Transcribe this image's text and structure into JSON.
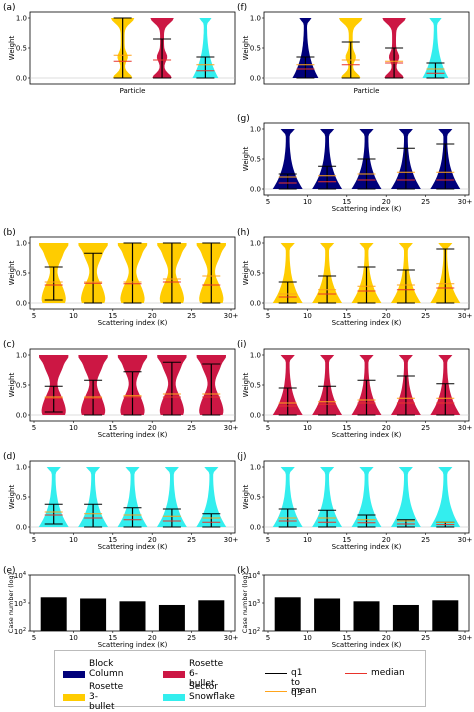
{
  "colors": {
    "block": "#00007a",
    "rosette6": "#cc1744",
    "rosette3": "#ffcc00",
    "sector": "#33eeee",
    "q1q3": "#000000",
    "mean": "#ffa41b",
    "median": "#e8332b"
  },
  "legend": {
    "items": [
      {
        "label": "Block\nColumn",
        "color": "#00007a",
        "kind": "swatch"
      },
      {
        "label": "Rosette\n6-bullet",
        "color": "#cc1744",
        "kind": "swatch"
      },
      {
        "label": "q1 to q3",
        "color": "#000000",
        "kind": "line"
      },
      {
        "label": "median",
        "color": "#e8332b",
        "kind": "line"
      },
      {
        "label": "Rosette\n3-bullet",
        "color": "#ffcc00",
        "kind": "swatch"
      },
      {
        "label": "Sector\nSnowflake",
        "color": "#33eeee",
        "kind": "swatch"
      },
      {
        "label": "mean",
        "color": "#ffa41b",
        "kind": "line"
      }
    ]
  },
  "chart_data": [
    {
      "panel": "(a)",
      "type": "violin",
      "xlabel": "Particle",
      "ylabel": "Weight",
      "ylim": [
        0,
        1
      ],
      "yticks": [
        "0.0",
        "0.5",
        "1.0"
      ],
      "xticks": [],
      "series": [
        {
          "color": "rosette3",
          "violins": [
            {
              "x": 0.45,
              "q1": 0.0,
              "q3": 1.0,
              "mean": 0.38,
              "median": 0.28,
              "shape": "wide-top"
            }
          ]
        },
        {
          "color": "rosette6",
          "violins": [
            {
              "x": 0.65,
              "q1": 0.0,
              "q3": 0.65,
              "mean": 0.3,
              "median": 0.3,
              "shape": "wide-top"
            }
          ]
        },
        {
          "color": "sector",
          "violins": [
            {
              "x": 0.87,
              "q1": 0.0,
              "q3": 0.35,
              "mean": 0.22,
              "median": 0.12,
              "shape": "wide-bottom"
            }
          ]
        }
      ]
    },
    {
      "panel": "(f)",
      "type": "violin",
      "xlabel": "Particle",
      "ylabel": "Weight",
      "ylim": [
        0,
        1
      ],
      "yticks": [
        "0.0",
        "0.5",
        "1.0"
      ],
      "xticks": [],
      "series": [
        {
          "color": "block",
          "violins": [
            {
              "x": 0.19,
              "q1": 0.0,
              "q3": 0.35,
              "mean": 0.22,
              "median": 0.15,
              "shape": "wide-bottom"
            }
          ]
        },
        {
          "color": "rosette3",
          "violins": [
            {
              "x": 0.42,
              "q1": 0.0,
              "q3": 0.6,
              "mean": 0.3,
              "median": 0.22,
              "shape": "wide-top"
            }
          ]
        },
        {
          "color": "rosette6",
          "violins": [
            {
              "x": 0.64,
              "q1": 0.0,
              "q3": 0.5,
              "mean": 0.28,
              "median": 0.25,
              "shape": "wide-top"
            }
          ]
        },
        {
          "color": "sector",
          "violins": [
            {
              "x": 0.85,
              "q1": 0.0,
              "q3": 0.25,
              "mean": 0.15,
              "median": 0.08,
              "shape": "wide-bottom"
            }
          ]
        }
      ]
    },
    {
      "panel": "(g)",
      "type": "violin",
      "xlabel": "Scattering index (K)",
      "ylabel": "Weight",
      "ylim": [
        0,
        1
      ],
      "yticks": [
        "0.0",
        "0.5",
        "1.0"
      ],
      "xticks": [
        "5",
        "10",
        "15",
        "20",
        "25",
        "30+"
      ],
      "series": [
        {
          "color": "block",
          "violins": [
            {
              "x": 7.5,
              "q1": 0.0,
              "q3": 0.25,
              "mean": 0.2,
              "median": 0.1,
              "shape": "wide-bottom"
            },
            {
              "x": 12.5,
              "q1": 0.0,
              "q3": 0.38,
              "mean": 0.22,
              "median": 0.12,
              "shape": "wide-bottom"
            },
            {
              "x": 17.5,
              "q1": 0.0,
              "q3": 0.5,
              "mean": 0.25,
              "median": 0.15,
              "shape": "wide-bottom"
            },
            {
              "x": 22.5,
              "q1": 0.0,
              "q3": 0.68,
              "mean": 0.28,
              "median": 0.15,
              "shape": "wide-bottom"
            },
            {
              "x": 27.5,
              "q1": 0.0,
              "q3": 0.75,
              "mean": 0.28,
              "median": 0.15,
              "shape": "wide-bottom"
            }
          ]
        }
      ]
    },
    {
      "panel": "(b)",
      "type": "violin",
      "xlabel": "Scattering index (K)",
      "ylabel": "Weight",
      "ylim": [
        0,
        1
      ],
      "yticks": [
        "0.0",
        "0.5",
        "1.0"
      ],
      "xticks": [
        "5",
        "10",
        "15",
        "20",
        "25",
        "30+"
      ],
      "series": [
        {
          "color": "rosette3",
          "violins": [
            {
              "x": 7.5,
              "q1": 0.05,
              "q3": 0.6,
              "mean": 0.35,
              "median": 0.3,
              "shape": "uniform"
            },
            {
              "x": 12.5,
              "q1": 0.0,
              "q3": 0.83,
              "mean": 0.35,
              "median": 0.33,
              "shape": "uniform"
            },
            {
              "x": 17.5,
              "q1": 0.0,
              "q3": 1.0,
              "mean": 0.35,
              "median": 0.32,
              "shape": "uniform"
            },
            {
              "x": 22.5,
              "q1": 0.0,
              "q3": 1.0,
              "mean": 0.4,
              "median": 0.35,
              "shape": "uniform"
            },
            {
              "x": 27.5,
              "q1": 0.0,
              "q3": 1.0,
              "mean": 0.45,
              "median": 0.3,
              "shape": "uniform"
            }
          ]
        }
      ]
    },
    {
      "panel": "(h)",
      "type": "violin",
      "xlabel": "Scattering index (K)",
      "ylabel": "Weight",
      "ylim": [
        0,
        1
      ],
      "yticks": [
        "0.0",
        "0.5",
        "1.0"
      ],
      "xticks": [
        "5",
        "10",
        "15",
        "20",
        "25",
        "30+"
      ],
      "series": [
        {
          "color": "rosette3",
          "violins": [
            {
              "x": 7.5,
              "q1": 0.0,
              "q3": 0.35,
              "mean": 0.15,
              "median": 0.1,
              "shape": "wide-bottom"
            },
            {
              "x": 12.5,
              "q1": 0.0,
              "q3": 0.45,
              "mean": 0.22,
              "median": 0.15,
              "shape": "wide-bottom"
            },
            {
              "x": 17.5,
              "q1": 0.0,
              "q3": 0.6,
              "mean": 0.28,
              "median": 0.2,
              "shape": "wide-bottom"
            },
            {
              "x": 22.5,
              "q1": 0.0,
              "q3": 0.55,
              "mean": 0.3,
              "median": 0.22,
              "shape": "wide-bottom"
            },
            {
              "x": 27.5,
              "q1": 0.0,
              "q3": 0.9,
              "mean": 0.32,
              "median": 0.25,
              "shape": "wide-bottom"
            }
          ]
        }
      ]
    },
    {
      "panel": "(c)",
      "type": "violin",
      "xlabel": "Scattering index (K)",
      "ylabel": "Weight",
      "ylim": [
        0,
        1
      ],
      "yticks": [
        "0.0",
        "0.5",
        "1.0"
      ],
      "xticks": [
        "5",
        "10",
        "15",
        "20",
        "25",
        "30+"
      ],
      "series": [
        {
          "color": "rosette6",
          "violins": [
            {
              "x": 7.5,
              "q1": 0.05,
              "q3": 0.48,
              "mean": 0.3,
              "median": 0.28,
              "shape": "uniform"
            },
            {
              "x": 12.5,
              "q1": 0.0,
              "q3": 0.58,
              "mean": 0.3,
              "median": 0.28,
              "shape": "uniform"
            },
            {
              "x": 17.5,
              "q1": 0.0,
              "q3": 0.72,
              "mean": 0.32,
              "median": 0.3,
              "shape": "uniform"
            },
            {
              "x": 22.5,
              "q1": 0.0,
              "q3": 0.88,
              "mean": 0.35,
              "median": 0.3,
              "shape": "uniform"
            },
            {
              "x": 27.5,
              "q1": 0.0,
              "q3": 0.85,
              "mean": 0.35,
              "median": 0.3,
              "shape": "uniform"
            }
          ]
        }
      ]
    },
    {
      "panel": "(i)",
      "type": "violin",
      "xlabel": "Scattering index (K)",
      "ylabel": "Weight",
      "ylim": [
        0,
        1
      ],
      "yticks": [
        "0.0",
        "0.5",
        "1.0"
      ],
      "xticks": [
        "5",
        "10",
        "15",
        "20",
        "25",
        "30+"
      ],
      "series": [
        {
          "color": "rosette6",
          "violins": [
            {
              "x": 7.5,
              "q1": 0.0,
              "q3": 0.45,
              "mean": 0.2,
              "median": 0.15,
              "shape": "wide-bottom"
            },
            {
              "x": 12.5,
              "q1": 0.0,
              "q3": 0.48,
              "mean": 0.22,
              "median": 0.18,
              "shape": "wide-bottom"
            },
            {
              "x": 17.5,
              "q1": 0.0,
              "q3": 0.58,
              "mean": 0.25,
              "median": 0.2,
              "shape": "wide-bottom"
            },
            {
              "x": 22.5,
              "q1": 0.0,
              "q3": 0.65,
              "mean": 0.28,
              "median": 0.2,
              "shape": "wide-bottom"
            },
            {
              "x": 27.5,
              "q1": 0.0,
              "q3": 0.52,
              "mean": 0.28,
              "median": 0.2,
              "shape": "wide-bottom"
            }
          ]
        }
      ]
    },
    {
      "panel": "(d)",
      "type": "violin",
      "xlabel": "Scattering index (K)",
      "ylabel": "Weight",
      "ylim": [
        0,
        1
      ],
      "yticks": [
        "0.0",
        "0.5",
        "1.0"
      ],
      "xticks": [
        "5",
        "10",
        "15",
        "20",
        "25",
        "30+"
      ],
      "series": [
        {
          "color": "sector",
          "violins": [
            {
              "x": 7.5,
              "q1": 0.05,
              "q3": 0.38,
              "mean": 0.25,
              "median": 0.2,
              "shape": "wide-bottom"
            },
            {
              "x": 12.5,
              "q1": 0.0,
              "q3": 0.38,
              "mean": 0.22,
              "median": 0.15,
              "shape": "wide-bottom"
            },
            {
              "x": 17.5,
              "q1": 0.0,
              "q3": 0.32,
              "mean": 0.2,
              "median": 0.12,
              "shape": "wide-bottom"
            },
            {
              "x": 22.5,
              "q1": 0.0,
              "q3": 0.3,
              "mean": 0.18,
              "median": 0.1,
              "shape": "wide-bottom"
            },
            {
              "x": 27.5,
              "q1": 0.0,
              "q3": 0.22,
              "mean": 0.15,
              "median": 0.08,
              "shape": "wide-bottom"
            }
          ]
        }
      ]
    },
    {
      "panel": "(j)",
      "type": "violin",
      "xlabel": "Scattering index (K)",
      "ylabel": "Weight",
      "ylim": [
        0,
        1
      ],
      "yticks": [
        "0.0",
        "0.5",
        "1.0"
      ],
      "xticks": [
        "5",
        "10",
        "15",
        "20",
        "25",
        "30+"
      ],
      "series": [
        {
          "color": "sector",
          "violins": [
            {
              "x": 7.5,
              "q1": 0.0,
              "q3": 0.3,
              "mean": 0.15,
              "median": 0.1,
              "shape": "wide-bottom"
            },
            {
              "x": 12.5,
              "q1": 0.0,
              "q3": 0.28,
              "mean": 0.15,
              "median": 0.08,
              "shape": "wide-bottom"
            },
            {
              "x": 17.5,
              "q1": 0.0,
              "q3": 0.2,
              "mean": 0.12,
              "median": 0.07,
              "shape": "wide-bottom"
            },
            {
              "x": 22.5,
              "q1": 0.0,
              "q3": 0.12,
              "mean": 0.1,
              "median": 0.05,
              "shape": "wide-bottom"
            },
            {
              "x": 27.5,
              "q1": 0.0,
              "q3": 0.08,
              "mean": 0.08,
              "median": 0.04,
              "shape": "wide-bottom"
            }
          ]
        }
      ]
    },
    {
      "panel": "(e)",
      "type": "bar",
      "xlabel": "Scattering index (K)",
      "ylabel": "Case number (log)",
      "yscale": "log",
      "ylim": [
        100,
        10000
      ],
      "xticks": [
        "5",
        "10",
        "15",
        "20",
        "25",
        "30+"
      ],
      "categories": [
        7.5,
        12.5,
        17.5,
        22.5,
        27.5
      ],
      "values": [
        1600,
        1450,
        1150,
        850,
        1250
      ],
      "color": "#000000"
    },
    {
      "panel": "(k)",
      "type": "bar",
      "xlabel": "Scattering index (K)",
      "ylabel": "Case number (log)",
      "yscale": "log",
      "ylim": [
        100,
        10000
      ],
      "xticks": [
        "5",
        "10",
        "15",
        "20",
        "25",
        "30+"
      ],
      "categories": [
        7.5,
        12.5,
        17.5,
        22.5,
        27.5
      ],
      "values": [
        1600,
        1450,
        1150,
        850,
        1250
      ],
      "color": "#000000"
    }
  ]
}
